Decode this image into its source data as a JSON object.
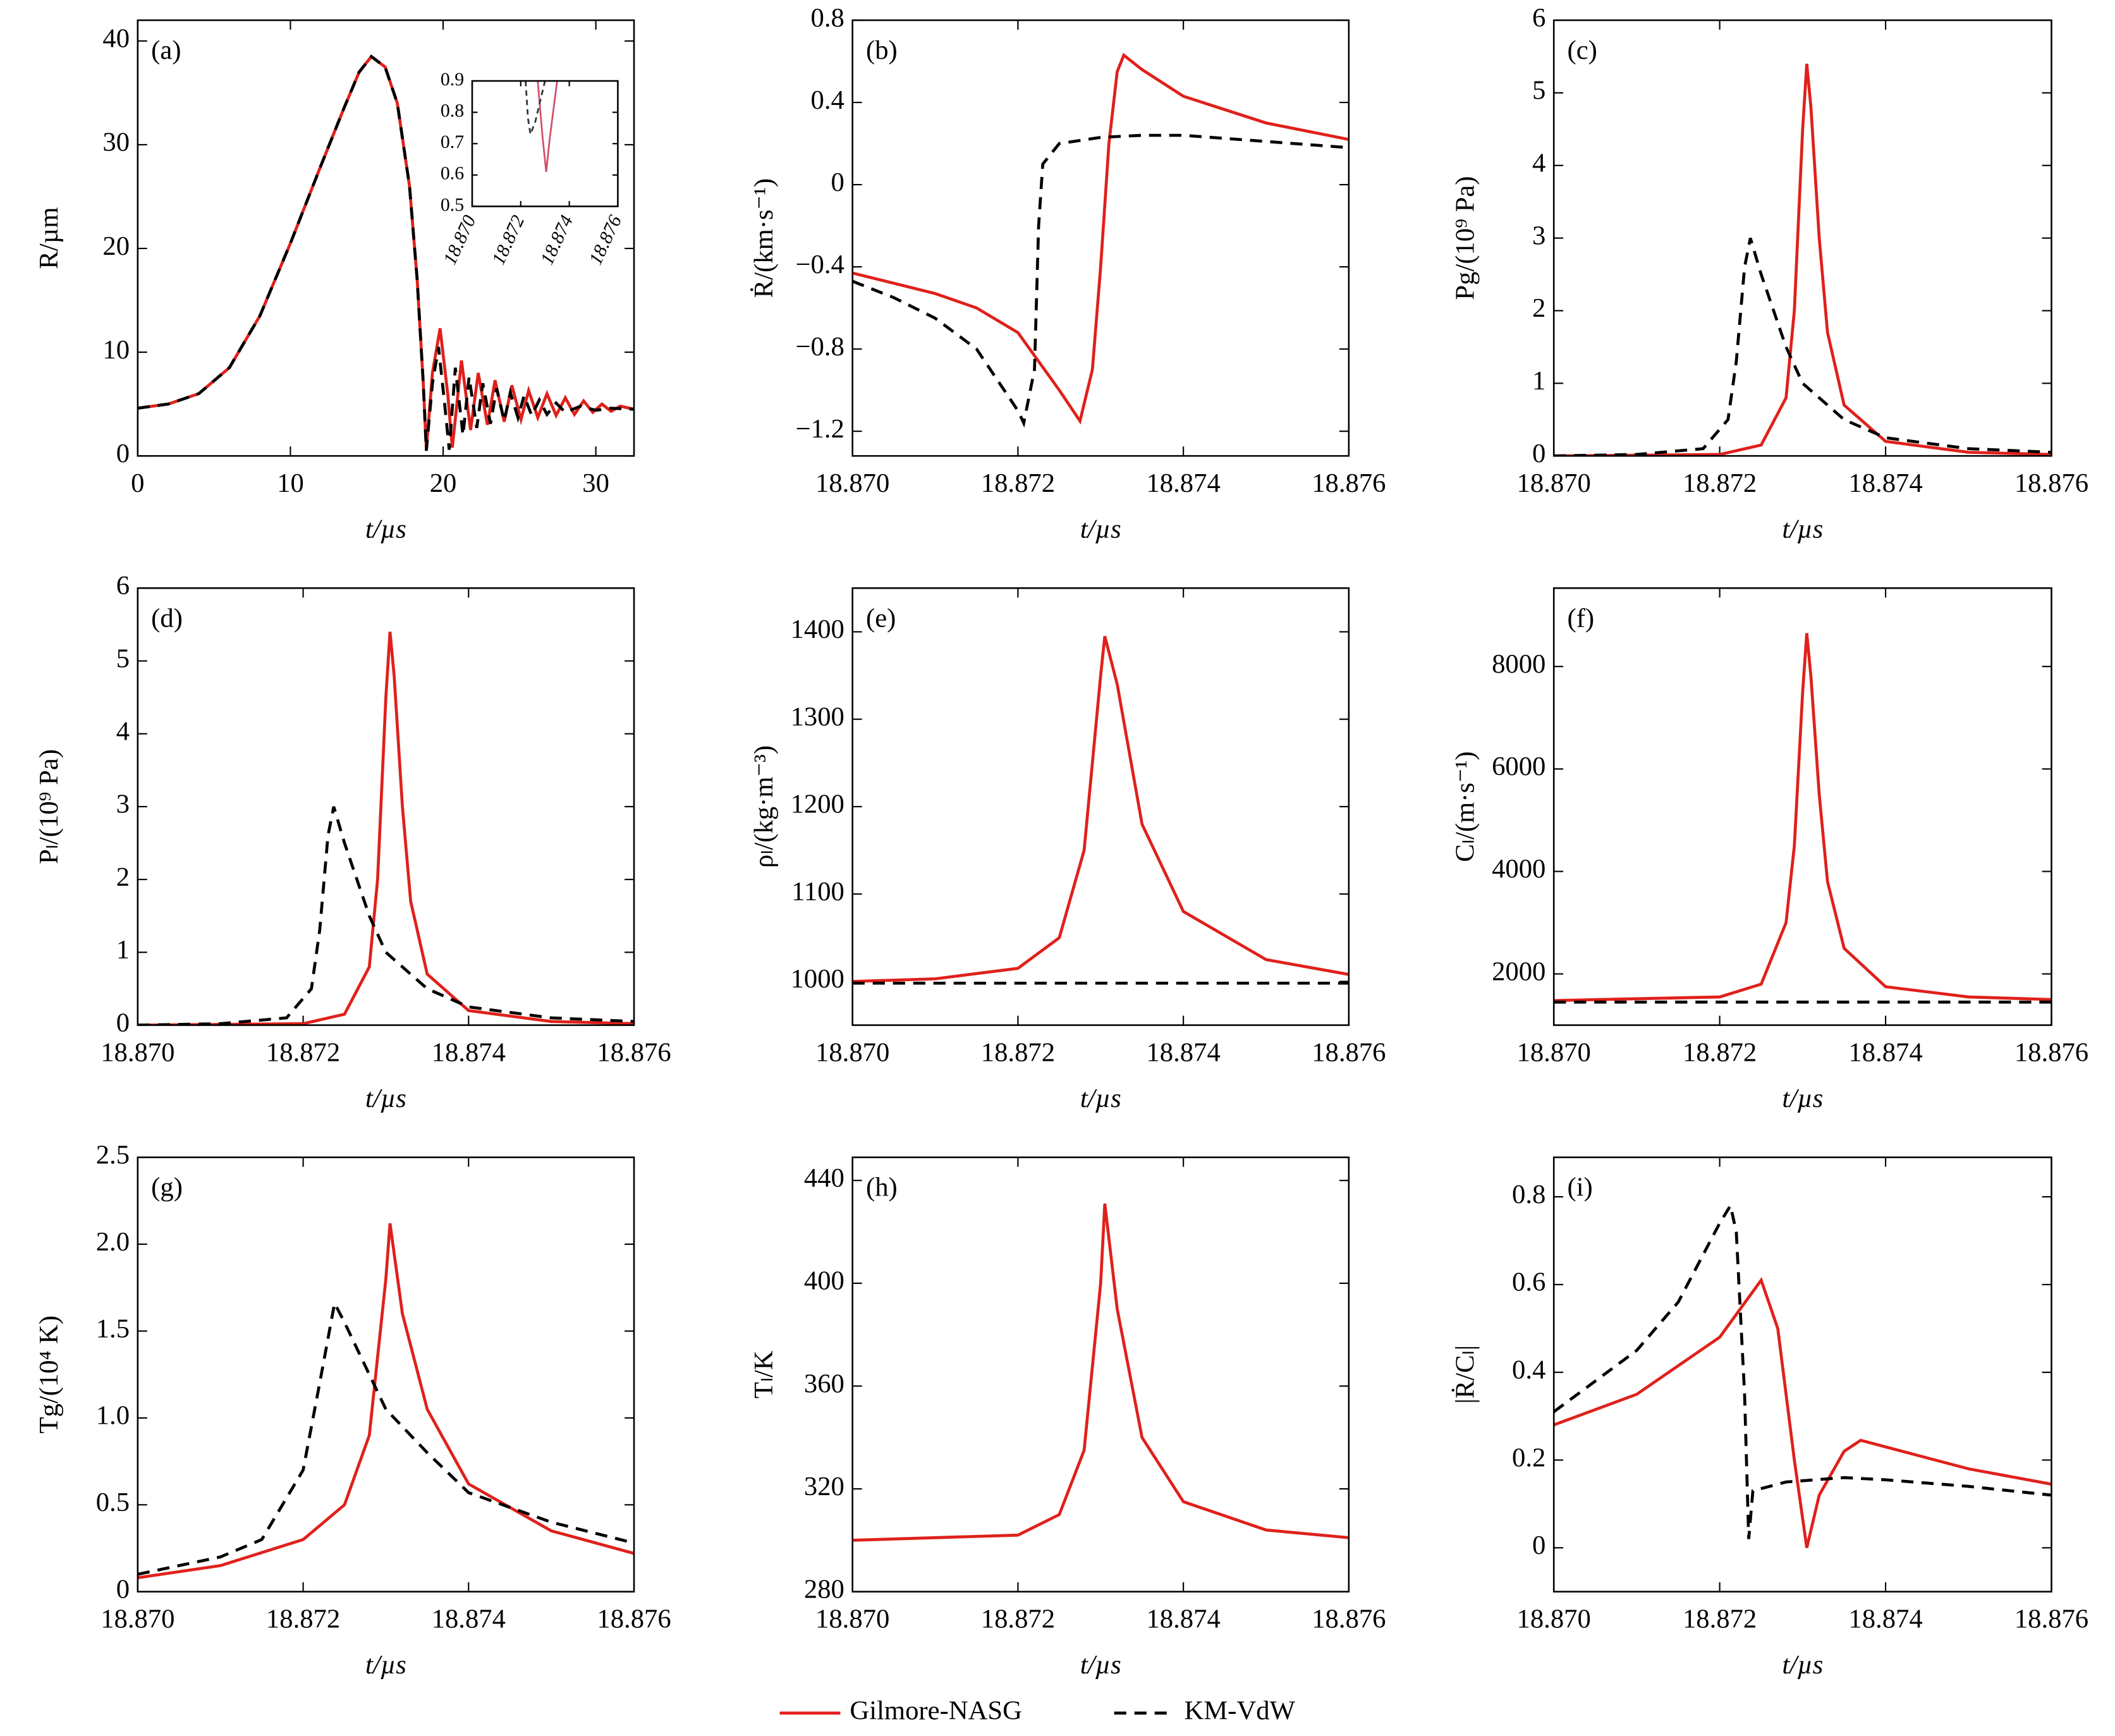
{
  "chart_data": [
    {
      "type": "line",
      "panel": "(a)",
      "xlabel": "t/µs",
      "ylabel": "R/µm",
      "xlim": [
        0,
        32.5
      ],
      "xticks": [
        0,
        10,
        20,
        30
      ],
      "ylim": [
        0,
        42
      ],
      "yticks": [
        0,
        10,
        20,
        30,
        40
      ],
      "series": [
        {
          "name": "Gilmore-NASG",
          "color": "#e0201b",
          "dash": false,
          "x": [
            0,
            2,
            4,
            6,
            8,
            10,
            12,
            13.5,
            14.5,
            15.3,
            16.2,
            17,
            17.8,
            18.3,
            18.7,
            18.9,
            19.3,
            19.8,
            20.3,
            20.6,
            21.2,
            21.8,
            22.3,
            22.9,
            23.4,
            24,
            24.5,
            25.1,
            25.6,
            26.2,
            26.8,
            27.4,
            28,
            28.6,
            29.2,
            29.8,
            30.4,
            31,
            31.6,
            32.5
          ],
          "values": [
            4.6,
            5,
            6,
            8.5,
            13.5,
            20.5,
            28,
            33.5,
            37,
            38.5,
            37.5,
            34,
            26,
            17,
            7,
            0.6,
            8,
            12.3,
            6,
            0.8,
            9.2,
            2.5,
            8,
            3,
            7.3,
            3.3,
            6.8,
            3.5,
            6.3,
            3.7,
            6,
            3.9,
            5.6,
            4,
            5.3,
            4.2,
            5,
            4.3,
            4.8,
            4.5
          ]
        },
        {
          "name": "KM-VdW",
          "color": "#000000",
          "dash": true,
          "x": [
            0,
            2,
            4,
            6,
            8,
            10,
            12,
            13.5,
            14.5,
            15.3,
            16.2,
            17,
            17.8,
            18.3,
            18.7,
            18.9,
            19.3,
            19.7,
            20.1,
            20.4,
            20.8,
            21.3,
            21.7,
            22.2,
            22.6,
            23.1,
            23.5,
            24,
            24.4,
            24.9,
            25.3,
            25.8,
            26.3,
            26.8,
            27.4,
            28,
            29,
            30,
            31,
            32.5
          ],
          "values": [
            4.6,
            5,
            6,
            8.5,
            13.5,
            20.5,
            28,
            33.5,
            37,
            38.5,
            37.5,
            34,
            26,
            17,
            7,
            0.5,
            7,
            10.5,
            5,
            0.6,
            8.5,
            2,
            7.6,
            2.7,
            7,
            3.1,
            6.5,
            3.4,
            6.1,
            3.7,
            5.8,
            3.9,
            5.4,
            4,
            5.1,
            4.2,
            4.8,
            4.4,
            4.6,
            4.5
          ]
        }
      ],
      "inset": {
        "xlim": [
          18.87,
          18.876
        ],
        "xticks": [
          {
            "value": 18.87,
            "label": "18.870"
          },
          18.872,
          18.874,
          18.876
        ],
        "ylim": [
          0.5,
          0.9
        ],
        "yticks": [
          0.5,
          0.6,
          0.7,
          0.8,
          0.9
        ],
        "series": [
          {
            "color": "#d0506a",
            "dash": false,
            "x": [
              18.8727,
              18.8729,
              18.87305,
              18.8732,
              18.8735
            ],
            "values": [
              0.9,
              0.72,
              0.61,
              0.72,
              0.9
            ]
          },
          {
            "color": "#333333",
            "dash": true,
            "x": [
              18.8722,
              18.8723,
              18.8724,
              18.8726,
              18.873
            ],
            "values": [
              0.9,
              0.78,
              0.73,
              0.77,
              0.9
            ]
          }
        ]
      }
    },
    {
      "type": "line",
      "panel": "(b)",
      "xlabel": "t/µs",
      "ylabel": "Ṙ/(km·s⁻¹)",
      "xlim": [
        18.87,
        18.876
      ],
      "xticks": [
        {
          "value": 18.87,
          "label": "18.870"
        },
        18.872,
        18.874,
        18.876
      ],
      "ylim": [
        -1.32,
        0.8
      ],
      "yticks": [
        0.8,
        0.4,
        0,
        {
          "value": -0.4,
          "label": "−0.4"
        },
        {
          "value": -0.8,
          "label": "−0.8"
        },
        {
          "value": -1.2,
          "label": "−1.2"
        }
      ],
      "series": [
        {
          "color": "#e0201b",
          "dash": false,
          "x": [
            18.87,
            18.871,
            18.8715,
            18.872,
            18.8725,
            18.87275,
            18.8729,
            18.873,
            18.8731,
            18.8732,
            18.87328,
            18.8735,
            18.874,
            18.875,
            18.876
          ],
          "values": [
            -0.43,
            -0.53,
            -0.6,
            -0.72,
            -1.0,
            -1.15,
            -0.9,
            -0.4,
            0.2,
            0.55,
            0.63,
            0.56,
            0.43,
            0.3,
            0.22
          ]
        },
        {
          "color": "#000000",
          "dash": true,
          "x": [
            18.87,
            18.8705,
            18.871,
            18.8715,
            18.872,
            18.87207,
            18.8722,
            18.87225,
            18.8723,
            18.8725,
            18.873,
            18.8735,
            18.874,
            18.875,
            18.876
          ],
          "values": [
            -0.47,
            -0.55,
            -0.65,
            -0.8,
            -1.1,
            -1.16,
            -0.9,
            -0.2,
            0.1,
            0.2,
            0.23,
            0.24,
            0.24,
            0.21,
            0.18
          ]
        }
      ]
    },
    {
      "type": "line",
      "panel": "(c)",
      "xlabel": "t/µs",
      "ylabel": "Pg/(10⁹ Pa)",
      "xlim": [
        18.87,
        18.876
      ],
      "xticks": [
        {
          "value": 18.87,
          "label": "18.870"
        },
        18.872,
        18.874,
        18.876
      ],
      "ylim": [
        0,
        6
      ],
      "yticks": [
        0,
        1,
        2,
        3,
        4,
        5,
        6
      ],
      "series": [
        {
          "color": "#e0201b",
          "dash": false,
          "x": [
            18.87,
            18.872,
            18.8725,
            18.8728,
            18.8729,
            18.873,
            18.87305,
            18.8731,
            18.8732,
            18.8733,
            18.8735,
            18.874,
            18.875,
            18.876
          ],
          "values": [
            0,
            0.02,
            0.15,
            0.8,
            2,
            4.5,
            5.4,
            4.8,
            3,
            1.7,
            0.7,
            0.2,
            0.05,
            0.02
          ]
        },
        {
          "color": "#000000",
          "dash": true,
          "x": [
            18.87,
            18.871,
            18.8718,
            18.8721,
            18.8722,
            18.8723,
            18.87237,
            18.8725,
            18.8728,
            18.873,
            18.8735,
            18.874,
            18.875,
            18.876
          ],
          "values": [
            0,
            0.02,
            0.1,
            0.5,
            1.3,
            2.6,
            3.0,
            2.5,
            1.5,
            1.0,
            0.5,
            0.25,
            0.1,
            0.05
          ]
        }
      ]
    },
    {
      "type": "line",
      "panel": "(d)",
      "xlabel": "t/µs",
      "ylabel": "Pₗ/(10⁹ Pa)",
      "xlim": [
        18.87,
        18.876
      ],
      "xticks": [
        {
          "value": 18.87,
          "label": "18.870"
        },
        18.872,
        18.874,
        18.876
      ],
      "ylim": [
        0,
        6
      ],
      "yticks": [
        0,
        1,
        2,
        3,
        4,
        5,
        6
      ],
      "series": [
        {
          "color": "#e0201b",
          "dash": false,
          "x": [
            18.87,
            18.872,
            18.8725,
            18.8728,
            18.8729,
            18.873,
            18.87305,
            18.8731,
            18.8732,
            18.8733,
            18.8735,
            18.874,
            18.875,
            18.876
          ],
          "values": [
            0,
            0.02,
            0.15,
            0.8,
            2,
            4.5,
            5.4,
            4.8,
            3,
            1.7,
            0.7,
            0.2,
            0.05,
            0.02
          ]
        },
        {
          "color": "#000000",
          "dash": true,
          "x": [
            18.87,
            18.871,
            18.8718,
            18.8721,
            18.8722,
            18.8723,
            18.87237,
            18.8725,
            18.8728,
            18.873,
            18.8735,
            18.874,
            18.875,
            18.876
          ],
          "values": [
            0,
            0.02,
            0.1,
            0.5,
            1.3,
            2.6,
            3.0,
            2.5,
            1.5,
            1.0,
            0.5,
            0.25,
            0.1,
            0.05
          ]
        }
      ]
    },
    {
      "type": "line",
      "panel": "(e)",
      "xlabel": "t/µs",
      "ylabel": "ρₗ/(kg·m⁻³)",
      "xlim": [
        18.87,
        18.876
      ],
      "xticks": [
        {
          "value": 18.87,
          "label": "18.870"
        },
        18.872,
        18.874,
        18.876
      ],
      "ylim": [
        950,
        1450
      ],
      "yticks": [
        1000,
        1100,
        1200,
        1300,
        1400
      ],
      "series": [
        {
          "color": "#e0201b",
          "dash": false,
          "x": [
            18.87,
            18.871,
            18.872,
            18.8725,
            18.8728,
            18.873,
            18.87305,
            18.8732,
            18.8735,
            18.874,
            18.875,
            18.876
          ],
          "values": [
            1000,
            1003,
            1015,
            1050,
            1150,
            1350,
            1395,
            1340,
            1180,
            1080,
            1025,
            1008
          ]
        },
        {
          "color": "#000000",
          "dash": true,
          "x": [
            18.87,
            18.876
          ],
          "values": [
            998,
            998
          ]
        }
      ]
    },
    {
      "type": "line",
      "panel": "(f)",
      "xlabel": "t/µs",
      "ylabel": "Cₗ/(m·s⁻¹)",
      "xlim": [
        18.87,
        18.876
      ],
      "xticks": [
        {
          "value": 18.87,
          "label": "18.870"
        },
        18.872,
        18.874,
        18.876
      ],
      "ylim": [
        1000,
        9530
      ],
      "yticks": [
        2000,
        4000,
        6000,
        8000
      ],
      "series": [
        {
          "color": "#e0201b",
          "dash": false,
          "x": [
            18.87,
            18.872,
            18.8725,
            18.8728,
            18.8729,
            18.873,
            18.87305,
            18.8731,
            18.8732,
            18.8733,
            18.8735,
            18.874,
            18.875,
            18.876
          ],
          "values": [
            1480,
            1550,
            1800,
            3000,
            4500,
            7500,
            8650,
            7800,
            5500,
            3800,
            2500,
            1750,
            1550,
            1500
          ]
        },
        {
          "color": "#000000",
          "dash": true,
          "x": [
            18.87,
            18.876
          ],
          "values": [
            1450,
            1450
          ]
        }
      ]
    },
    {
      "type": "line",
      "panel": "(g)",
      "xlabel": "t/µs",
      "ylabel": "Tg/(10⁴ K)",
      "xlim": [
        18.87,
        18.876
      ],
      "xticks": [
        {
          "value": 18.87,
          "label": "18.870"
        },
        18.872,
        18.874,
        18.876
      ],
      "ylim": [
        0,
        2.5
      ],
      "yticks": [
        0,
        0.5,
        {
          "value": 1,
          "label": "1.0"
        },
        1.5,
        {
          "value": 2,
          "label": "2.0"
        },
        2.5
      ],
      "series": [
        {
          "color": "#e0201b",
          "dash": false,
          "x": [
            18.87,
            18.871,
            18.872,
            18.8725,
            18.8728,
            18.873,
            18.87305,
            18.8732,
            18.8735,
            18.874,
            18.875,
            18.876
          ],
          "values": [
            0.08,
            0.15,
            0.3,
            0.5,
            0.9,
            1.8,
            2.12,
            1.6,
            1.05,
            0.62,
            0.35,
            0.22
          ]
        },
        {
          "color": "#000000",
          "dash": true,
          "x": [
            18.87,
            18.871,
            18.8715,
            18.872,
            18.8722,
            18.87238,
            18.8725,
            18.873,
            18.8735,
            18.874,
            18.875,
            18.876
          ],
          "values": [
            0.1,
            0.2,
            0.3,
            0.7,
            1.2,
            1.66,
            1.55,
            1.05,
            0.8,
            0.57,
            0.4,
            0.28
          ]
        }
      ]
    },
    {
      "type": "line",
      "panel": "(h)",
      "xlabel": "t/µs",
      "ylabel": "Tₗ/K",
      "xlim": [
        18.87,
        18.876
      ],
      "xticks": [
        {
          "value": 18.87,
          "label": "18.870"
        },
        18.872,
        18.874,
        18.876
      ],
      "ylim": [
        280,
        449
      ],
      "yticks": [
        280,
        320,
        360,
        400,
        440
      ],
      "series": [
        {
          "color": "#e0201b",
          "dash": false,
          "x": [
            18.87,
            18.872,
            18.8725,
            18.8728,
            18.873,
            18.87305,
            18.8732,
            18.8735,
            18.874,
            18.875,
            18.876
          ],
          "values": [
            300,
            302,
            310,
            335,
            400,
            431,
            390,
            340,
            315,
            304,
            301
          ]
        }
      ]
    },
    {
      "type": "line",
      "panel": "(i)",
      "xlabel": "t/µs",
      "ylabel": "|Ṙ/Cₗ|",
      "xlim": [
        18.87,
        18.876
      ],
      "xticks": [
        {
          "value": 18.87,
          "label": "18.870"
        },
        18.872,
        18.874,
        18.876
      ],
      "ylim": [
        -0.1,
        0.89
      ],
      "yticks": [
        0,
        0.2,
        0.4,
        0.6,
        0.8
      ],
      "series": [
        {
          "color": "#e0201b",
          "dash": false,
          "x": [
            18.87,
            18.871,
            18.872,
            18.8725,
            18.8727,
            18.8729,
            18.87305,
            18.8732,
            18.8735,
            18.8737,
            18.874,
            18.875,
            18.876
          ],
          "values": [
            0.28,
            0.35,
            0.48,
            0.61,
            0.5,
            0.2,
            0,
            0.12,
            0.22,
            0.245,
            0.23,
            0.18,
            0.145
          ]
        },
        {
          "color": "#000000",
          "dash": true,
          "x": [
            18.87,
            18.871,
            18.8715,
            18.872,
            18.87213,
            18.8722,
            18.8723,
            18.87235,
            18.8724,
            18.8728,
            18.8735,
            18.874,
            18.875,
            18.876
          ],
          "values": [
            0.31,
            0.45,
            0.56,
            0.74,
            0.78,
            0.72,
            0.35,
            0.02,
            0.13,
            0.15,
            0.16,
            0.155,
            0.14,
            0.12
          ]
        }
      ]
    }
  ]
}
